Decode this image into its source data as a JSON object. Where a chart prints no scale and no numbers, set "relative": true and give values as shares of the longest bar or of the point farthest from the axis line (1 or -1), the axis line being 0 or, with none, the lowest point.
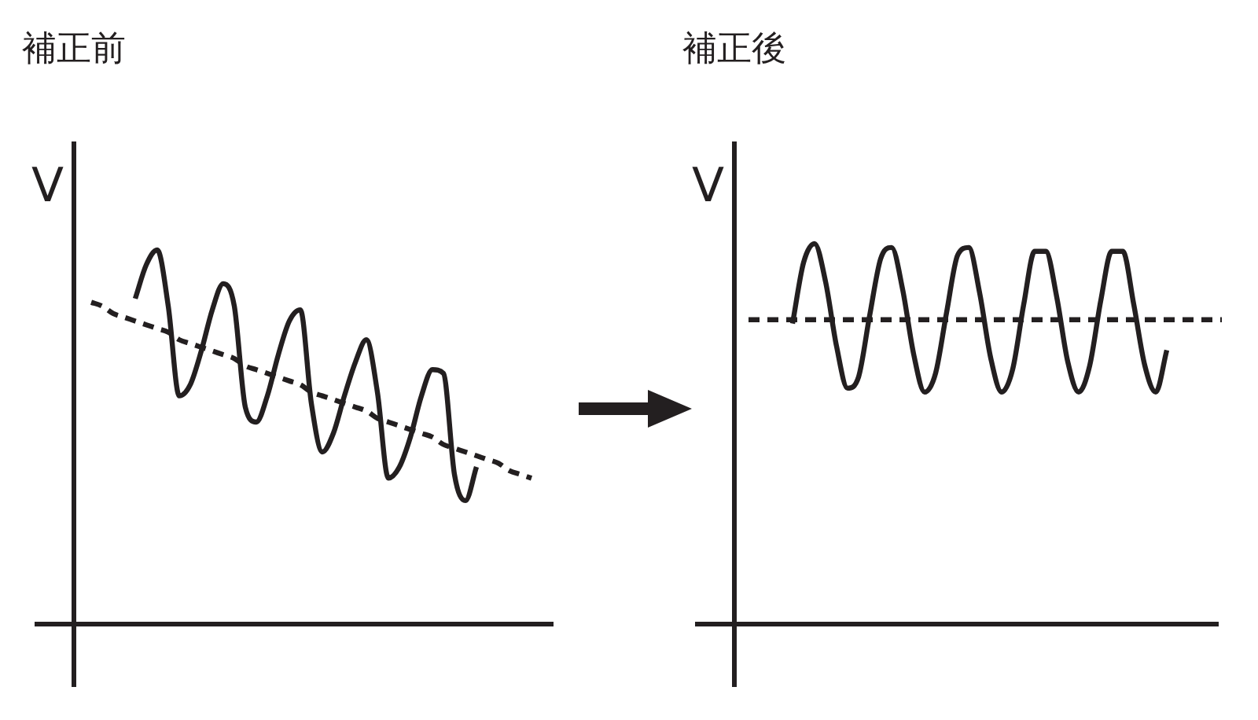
{
  "chart_data": [
    {
      "type": "line",
      "title": "補正前",
      "ylabel": "V",
      "relative": true,
      "categories": [
        null,
        null,
        null,
        null,
        null,
        null,
        null,
        null,
        null,
        null,
        null,
        null,
        null,
        null,
        null,
        null,
        null,
        null,
        null,
        null,
        null,
        null,
        null,
        null,
        null,
        null,
        null,
        null,
        null,
        null,
        null,
        null,
        null,
        null,
        null,
        null,
        null,
        null,
        null,
        null,
        null
      ],
      "series": [
        {
          "color": "#231f20",
          "line_style": "solid",
          "values": [
            null,
            null,
            null,
            null,
            0.87,
            0.96,
            1.0,
            0.85,
            0.61,
            0.64,
            0.73,
            0.84,
            0.91,
            0.85,
            0.58,
            0.54,
            0.61,
            0.72,
            0.81,
            0.84,
            0.59,
            0.46,
            0.51,
            0.61,
            0.7,
            0.76,
            0.62,
            0.39,
            0.42,
            0.5,
            0.61,
            0.68,
            0.67,
            0.4,
            0.33,
            0.42,
            null,
            null,
            null,
            null,
            null
          ]
        },
        {
          "color": "#231f20",
          "line_style": "dashed",
          "values": [
            0.86,
            0.85,
            0.83,
            0.82,
            0.81,
            0.8,
            0.79,
            0.78,
            0.76,
            0.75,
            0.74,
            0.73,
            0.72,
            0.71,
            0.69,
            0.68,
            0.67,
            0.66,
            0.65,
            0.64,
            0.62,
            0.61,
            0.6,
            0.59,
            0.58,
            0.57,
            0.55,
            0.54,
            0.53,
            0.52,
            0.51,
            0.5,
            0.48,
            0.47,
            0.46,
            0.45,
            0.44,
            0.43,
            0.41,
            0.4,
            0.39
          ]
        }
      ]
    },
    {
      "type": "line",
      "title": "補正後",
      "ylabel": "V",
      "relative": true,
      "categories": [
        null,
        null,
        null,
        null,
        null,
        null,
        null,
        null,
        null,
        null,
        null,
        null,
        null,
        null,
        null,
        null,
        null,
        null,
        null,
        null,
        null,
        null,
        null,
        null,
        null,
        null,
        null,
        null,
        null,
        null,
        null,
        null,
        null,
        null,
        null,
        null,
        null,
        null,
        null,
        null,
        null,
        null,
        null,
        null
      ],
      "series": [
        {
          "color": "#231f20",
          "line_style": "solid",
          "values": [
            null,
            null,
            null,
            null,
            0.79,
            0.95,
            1.0,
            0.9,
            0.73,
            0.62,
            0.65,
            0.81,
            0.96,
            0.99,
            0.88,
            0.71,
            0.61,
            0.66,
            0.82,
            0.97,
            0.99,
            0.87,
            0.7,
            0.61,
            0.67,
            0.84,
            0.98,
            0.98,
            0.86,
            0.69,
            0.61,
            0.68,
            0.85,
            0.98,
            0.98,
            0.84,
            0.68,
            0.61,
            0.72,
            null,
            null,
            null,
            null,
            null
          ]
        },
        {
          "color": "#231f20",
          "line_style": "dashed",
          "values": [
            0.8,
            0.8,
            0.8,
            0.8,
            0.8,
            0.8,
            0.8,
            0.8,
            0.8,
            0.8,
            0.8,
            0.8,
            0.8,
            0.8,
            0.8,
            0.8,
            0.8,
            0.8,
            0.8,
            0.8,
            0.8,
            0.8,
            0.8,
            0.8,
            0.8,
            0.8,
            0.8,
            0.8,
            0.8,
            0.8,
            0.8,
            0.8,
            0.8,
            0.8,
            0.8,
            0.8,
            0.8,
            0.8,
            0.8,
            0.8,
            0.8,
            0.8,
            0.8,
            0.8
          ]
        }
      ]
    }
  ]
}
